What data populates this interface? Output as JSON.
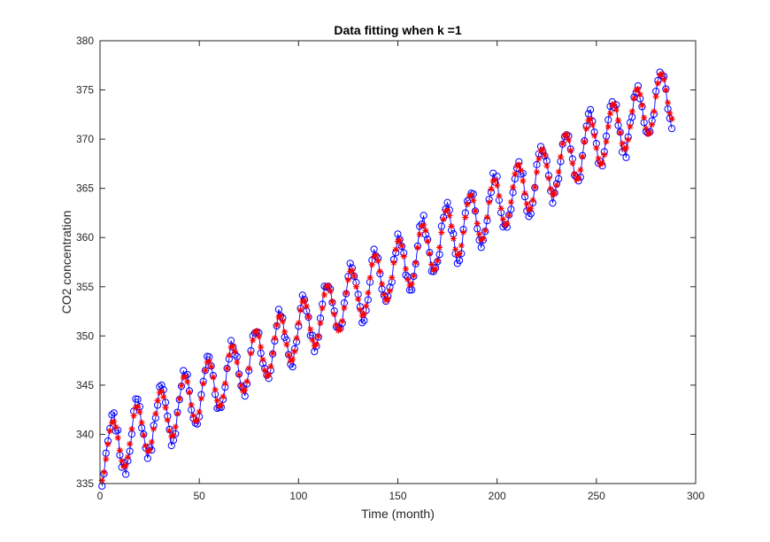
{
  "chart_data": {
    "type": "line",
    "title": "Data fitting when k =1",
    "xlabel": "Time (month)",
    "ylabel": "CO2 concentration",
    "xlim": [
      0,
      300
    ],
    "ylim": [
      335,
      380
    ],
    "xticks": [
      "0",
      "50",
      "100",
      "150",
      "200",
      "250",
      "300"
    ],
    "yticks": [
      "335",
      "340",
      "345",
      "350",
      "355",
      "360",
      "365",
      "370",
      "375",
      "380"
    ],
    "grid": false,
    "legend": "none",
    "x_start": 1,
    "x_end": 288,
    "series": [
      {
        "role": "observed",
        "marker": "circle",
        "line": true,
        "color": "#0000ff",
        "model": {
          "intercept": 337.8,
          "slope": 0.128,
          "amplitude": 3.0,
          "period": 12,
          "phase_month": 3.5,
          "noise": 0.7
        }
      },
      {
        "role": "fitted",
        "marker": "asterisk",
        "line": false,
        "color": "#ff0000",
        "model": {
          "intercept": 337.8,
          "slope": 0.128,
          "amplitude": 2.7,
          "period": 12,
          "phase_month": 3.5,
          "noise": 0
        }
      }
    ]
  }
}
